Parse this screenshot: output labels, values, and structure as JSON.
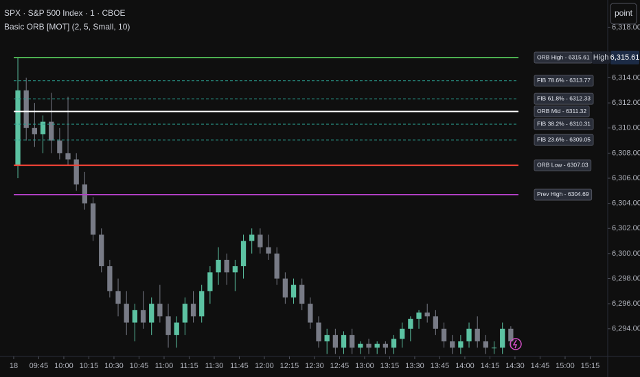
{
  "chart_data": {
    "type": "candlestick",
    "title": "SPX · S&P 500 Index · 1 · CBOE",
    "subtitle": "Basic ORB [MOT] (2, 5, Small, 10)",
    "button": "point",
    "price_tag": {
      "name": "High",
      "value": 6315.61,
      "label": "6,315.61"
    },
    "up_color": "#5cc2a2",
    "down_color": "#787b86",
    "xlim": [
      -8.2,
      355.5
    ],
    "xticks": [
      {
        "value": 0,
        "label": "18"
      },
      {
        "value": 15,
        "label": "09:45"
      },
      {
        "value": 30,
        "label": "10:00"
      },
      {
        "value": 45,
        "label": "10:15"
      },
      {
        "value": 60,
        "label": "10:30"
      },
      {
        "value": 75,
        "label": "10:45"
      },
      {
        "value": 90,
        "label": "11:00"
      },
      {
        "value": 105,
        "label": "11:15"
      },
      {
        "value": 120,
        "label": "11:30"
      },
      {
        "value": 135,
        "label": "11:45"
      },
      {
        "value": 150,
        "label": "12:00"
      },
      {
        "value": 165,
        "label": "12:15"
      },
      {
        "value": 180,
        "label": "12:30"
      },
      {
        "value": 195,
        "label": "12:45"
      },
      {
        "value": 210,
        "label": "13:00"
      },
      {
        "value": 225,
        "label": "13:15"
      },
      {
        "value": 240,
        "label": "13:30"
      },
      {
        "value": 255,
        "label": "13:45"
      },
      {
        "value": 270,
        "label": "14:00"
      },
      {
        "value": 285,
        "label": "14:15"
      },
      {
        "value": 300,
        "label": "14:30"
      },
      {
        "value": 315,
        "label": "14:45"
      },
      {
        "value": 330,
        "label": "15:00"
      },
      {
        "value": 345,
        "label": "15:15"
      }
    ],
    "ylim": [
      6291.8,
      6320.2
    ],
    "yticks": [
      {
        "value": 6294,
        "label": "6,294.00"
      },
      {
        "value": 6296,
        "label": "6,296.00"
      },
      {
        "value": 6298,
        "label": "6,298.00"
      },
      {
        "value": 6300,
        "label": "6,300.00"
      },
      {
        "value": 6302,
        "label": "6,302.00"
      },
      {
        "value": 6304,
        "label": "6,304.00"
      },
      {
        "value": 6306,
        "label": "6,306.00"
      },
      {
        "value": 6308,
        "label": "6,308.00"
      },
      {
        "value": 6310,
        "label": "6,310.00"
      },
      {
        "value": 6312,
        "label": "6,312.00"
      },
      {
        "value": 6314,
        "label": "6,314.00"
      },
      {
        "value": 6318,
        "label": "6,318.00"
      }
    ],
    "x": [
      2.5,
      7.5,
      12.5,
      17.5,
      22.5,
      27.5,
      32.5,
      37.5,
      42.5,
      47.5,
      52.5,
      57.5,
      62.5,
      67.5,
      72.5,
      77.5,
      82.5,
      87.5,
      92.5,
      97.5,
      102.5,
      107.5,
      112.5,
      117.5,
      122.5,
      127.5,
      132.5,
      137.5,
      142.5,
      147.5,
      152.5,
      157.5,
      162.5,
      167.5,
      172.5,
      177.5,
      182.5,
      187.5,
      192.5,
      197.5,
      202.5,
      207.5,
      212.5,
      217.5,
      222.5,
      227.5,
      232.5,
      237.5,
      242.5,
      247.5,
      252.5,
      257.5,
      262.5,
      267.5,
      272.5,
      277.5,
      282.5,
      287.5,
      292.5,
      297.5
    ],
    "open": [
      6307,
      6313,
      6310,
      6309.5,
      6310.5,
      6309,
      6308,
      6307.5,
      6305.5,
      6304,
      6301.5,
      6299,
      6297,
      6296,
      6294.5,
      6295.5,
      6294.5,
      6296,
      6295,
      6293.5,
      6294.5,
      6296,
      6295,
      6297,
      6298.5,
      6299.5,
      6298.5,
      6299,
      6301,
      6301.5,
      6300.5,
      6300,
      6298,
      6296.5,
      6297.5,
      6296,
      6294.5,
      6293,
      6293.5,
      6292.5,
      6293.5,
      6292.5,
      6292.8,
      6292.5,
      6292.8,
      6292.5,
      6293.2,
      6294,
      6294.8,
      6295.3,
      6295,
      6294,
      6293,
      6292.5,
      6293,
      6294,
      6293,
      6292.5,
      6292.5,
      6294
    ],
    "high": [
      6315.6,
      6314,
      6312,
      6311,
      6312.8,
      6310,
      6312.5,
      6308,
      6306.5,
      6304.5,
      6302,
      6299.5,
      6298,
      6297,
      6296,
      6297,
      6296.5,
      6297.5,
      6296,
      6295,
      6296.5,
      6297,
      6297.5,
      6299,
      6300.5,
      6300,
      6299.5,
      6301.5,
      6302,
      6302,
      6301.5,
      6300.5,
      6298.5,
      6298,
      6298,
      6296.5,
      6295,
      6294,
      6294,
      6293.8,
      6294,
      6293,
      6293.2,
      6293,
      6293,
      6293.5,
      6294.5,
      6295,
      6295.5,
      6296,
      6295.5,
      6294.5,
      6293.5,
      6293.5,
      6294.5,
      6295,
      6293.5,
      6293,
      6294.5,
      6294.2
    ],
    "low": [
      6306,
      6309,
      6308.5,
      6308,
      6308,
      6307.5,
      6307,
      6305,
      6303.5,
      6301,
      6298.5,
      6296.5,
      6295,
      6293.5,
      6293,
      6294,
      6293.5,
      6294.5,
      6292.5,
      6292.5,
      6293.5,
      6294.5,
      6294.5,
      6296,
      6297.5,
      6297.5,
      6297,
      6298,
      6300,
      6300,
      6299.5,
      6297.5,
      6296,
      6296,
      6295.5,
      6294,
      6292.5,
      6292,
      6292,
      6292,
      6292,
      6292,
      6292,
      6292,
      6292,
      6292,
      6292.5,
      6293,
      6294,
      6294.5,
      6293.5,
      6292.5,
      6292,
      6292,
      6292.5,
      6292.5,
      6292,
      6292,
      6292,
      6292.5
    ],
    "close": [
      6313,
      6310,
      6309.5,
      6310.5,
      6309,
      6308,
      6307.5,
      6305.5,
      6304,
      6301.5,
      6299,
      6297,
      6296,
      6294.5,
      6295.5,
      6294.5,
      6296,
      6295,
      6293.5,
      6294.5,
      6296,
      6295,
      6297,
      6298.5,
      6299.5,
      6298.5,
      6299,
      6301,
      6301.5,
      6300.5,
      6300,
      6298,
      6296.5,
      6297.5,
      6296,
      6294.5,
      6293,
      6293.5,
      6292.5,
      6293.5,
      6292.5,
      6292.8,
      6292.5,
      6292.8,
      6292.5,
      6293.2,
      6294,
      6294.8,
      6295.3,
      6295,
      6294,
      6293,
      6292.5,
      6293,
      6294,
      6293,
      6292.5,
      6292.5,
      6294,
      6293
    ],
    "levels": [
      {
        "value": 6315.61,
        "label": "ORB High - 6315.61",
        "color": "#4caf50",
        "style": "solid"
      },
      {
        "value": 6313.77,
        "label": "FIB 78.6% - 6313.77",
        "color": "#2a9d8f",
        "style": "dashed"
      },
      {
        "value": 6312.33,
        "label": "FIB 61.8% - 6312.33",
        "color": "#2a9d8f",
        "style": "dashed"
      },
      {
        "value": 6311.32,
        "label": "ORB Mid - 6311.32",
        "color": "#ffffff",
        "style": "solid"
      },
      {
        "value": 6310.31,
        "label": "FIB 38.2% - 6310.31",
        "color": "#2a9d8f",
        "style": "dashed"
      },
      {
        "value": 6309.05,
        "label": "FIB 23.6% - 6309.05",
        "color": "#2a9d8f",
        "style": "dashed"
      },
      {
        "value": 6307.03,
        "label": "ORB Low - 6307.03",
        "color": "#f44336",
        "style": "solid"
      },
      {
        "value": 6304.69,
        "label": "Prev High - 6304.69",
        "color": "#b03fc4",
        "style": "solid"
      }
    ]
  }
}
